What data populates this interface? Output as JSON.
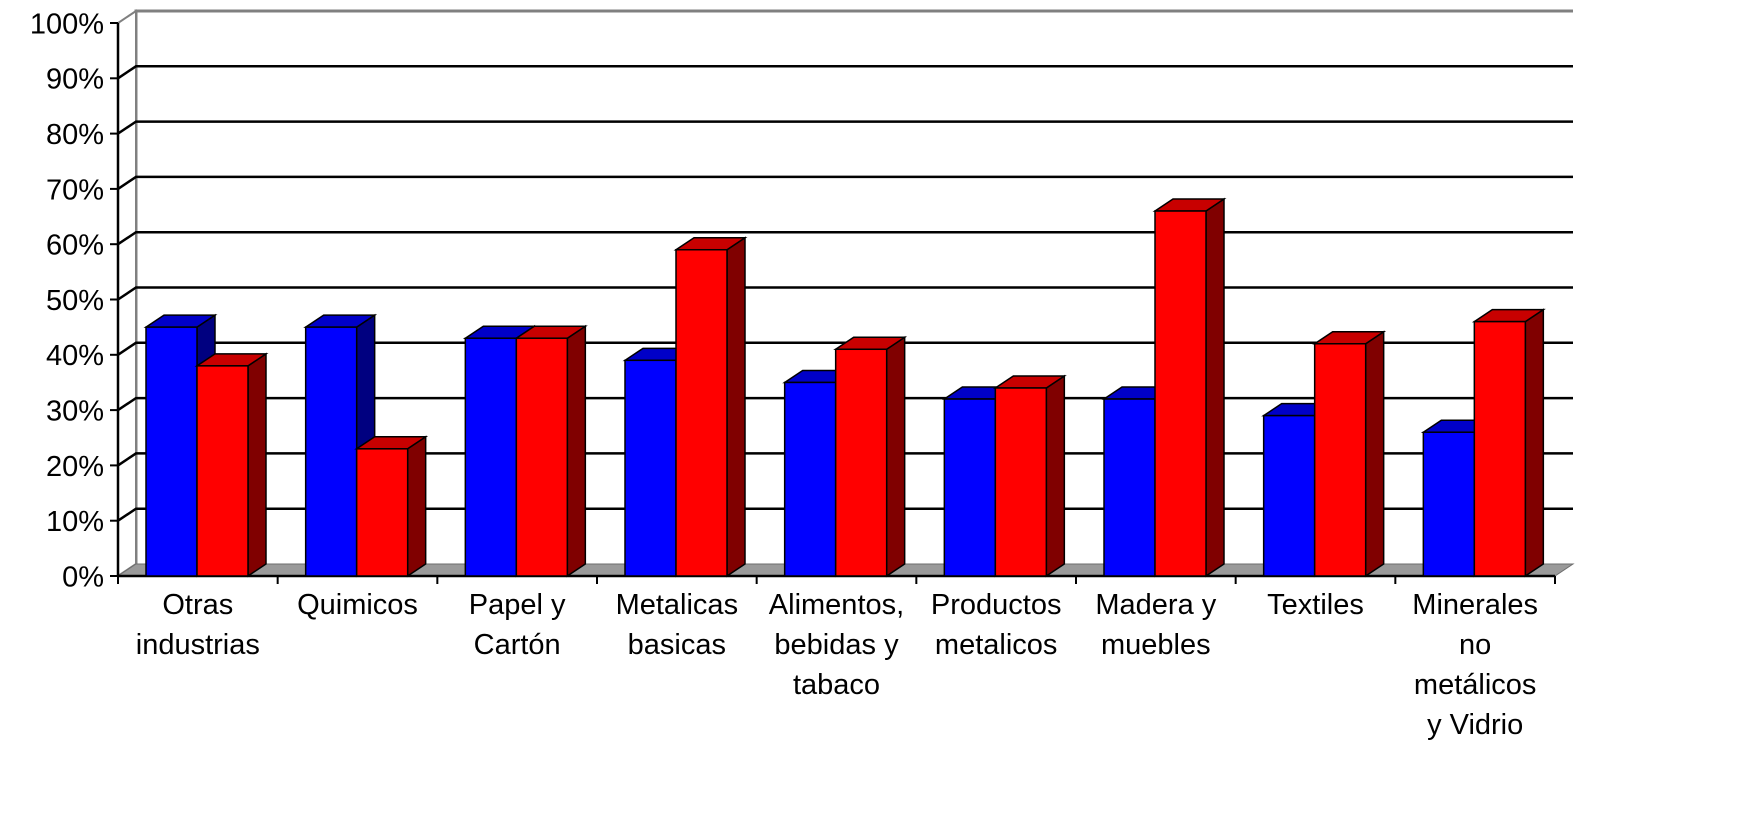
{
  "chart_data": {
    "type": "bar",
    "style": "3d-clustered-column",
    "categories": [
      "Otras industrias",
      "Quimicos",
      "Papel y Cartón",
      "Metalicas basicas",
      "Alimentos, bebidas y tabaco",
      "Productos metalicos",
      "Madera y muebles",
      "Textiles",
      "Minerales no metálicos y Vidrio"
    ],
    "category_label_lines": [
      [
        "Otras",
        "industrias"
      ],
      [
        "Quimicos"
      ],
      [
        "Papel y",
        "Cartón"
      ],
      [
        "Metalicas",
        "basicas"
      ],
      [
        "Alimentos,",
        "bebidas y",
        "tabaco"
      ],
      [
        "Productos",
        "metalicos"
      ],
      [
        "Madera y",
        "muebles"
      ],
      [
        "Textiles"
      ],
      [
        "Minerales",
        "no",
        "metálicos",
        "y Vidrio"
      ]
    ],
    "series": [
      {
        "color": "#0000ff",
        "top_color": "#0000c8",
        "side_color": "#000080",
        "values": [
          45,
          45,
          43,
          39,
          35,
          32,
          32,
          29,
          26
        ]
      },
      {
        "color": "#ff0000",
        "top_color": "#c80000",
        "side_color": "#800000",
        "values": [
          38,
          23,
          43,
          59,
          41,
          34,
          66,
          42,
          46
        ]
      }
    ],
    "y_ticks": [
      "0%",
      "10%",
      "20%",
      "30%",
      "40%",
      "50%",
      "60%",
      "70%",
      "80%",
      "90%",
      "100%"
    ],
    "ylim": [
      0,
      100
    ],
    "y_unit": "%",
    "grid": true,
    "legend": "none",
    "title": "",
    "xlabel": "",
    "ylabel": ""
  }
}
